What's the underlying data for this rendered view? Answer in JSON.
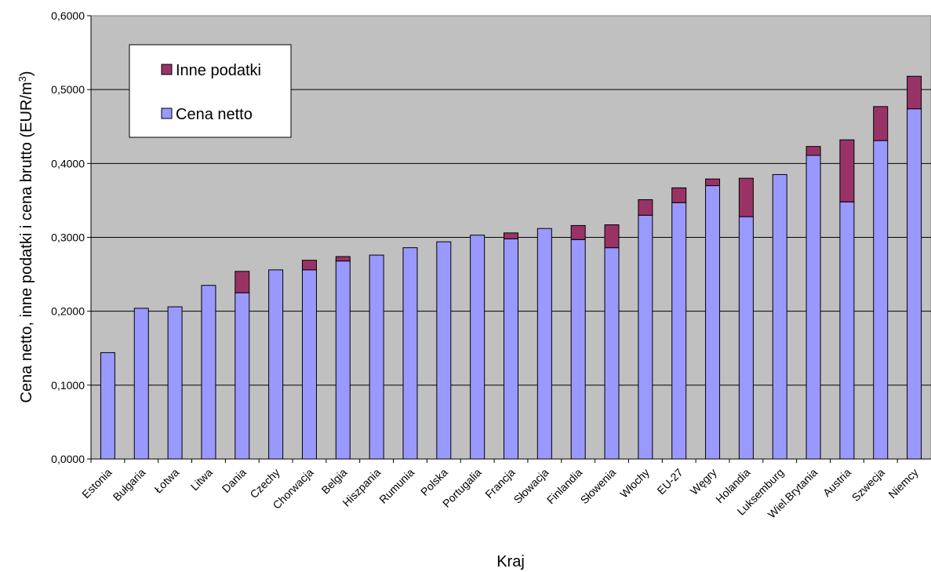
{
  "chart_data": {
    "type": "bar",
    "stacked": true,
    "title": "",
    "xlabel": "Kraj",
    "ylabel": "Cena netto, inne podatki i cena brutto (EUR/m",
    "ylabel_sup": "3",
    "ylabel_end": ")",
    "ylim": [
      0,
      0.6
    ],
    "ytick_step": 0.1,
    "ytick_labels": [
      "0,0000",
      "0,1000",
      "0,2000",
      "0,3000",
      "0,4000",
      "0,5000",
      "0,6000"
    ],
    "grid": true,
    "legend_position": "top-left",
    "categories": [
      "Estonia",
      "Bułgaria",
      "Łotwa",
      "Litwa",
      "Dania",
      "Czechy",
      "Chorwacja",
      "Belgia",
      "Hiszpania",
      "Rumunia",
      "Polska",
      "Portugalia",
      "Francja",
      "Słowacja",
      "Finlandia",
      "Słowenia",
      "Włochy",
      "EU-27",
      "Węgry",
      "Holandia",
      "Luksemburg",
      "Wiel.Brytania",
      "Austria",
      "Szwecja",
      "Niemcy"
    ],
    "series": [
      {
        "name": "Cena netto",
        "color": "#9999ff",
        "values": [
          0.144,
          0.204,
          0.206,
          0.235,
          0.225,
          0.256,
          0.256,
          0.268,
          0.276,
          0.286,
          0.294,
          0.303,
          0.298,
          0.312,
          0.297,
          0.286,
          0.33,
          0.347,
          0.37,
          0.328,
          0.385,
          0.411,
          0.348,
          0.431,
          0.474
        ]
      },
      {
        "name": "Inne podatki",
        "color": "#993366",
        "values": [
          0,
          0,
          0,
          0,
          0.029,
          0,
          0.013,
          0.006,
          0,
          0,
          0,
          0,
          0.008,
          0,
          0.019,
          0.031,
          0.021,
          0.02,
          0.009,
          0.052,
          0,
          0.012,
          0.084,
          0.046,
          0.044
        ]
      }
    ],
    "plot_bg": "#c0c0c0",
    "legend_entries": [
      {
        "label": "Inne podatki",
        "color": "#993366"
      },
      {
        "label": "Cena netto",
        "color": "#9999ff"
      }
    ]
  }
}
